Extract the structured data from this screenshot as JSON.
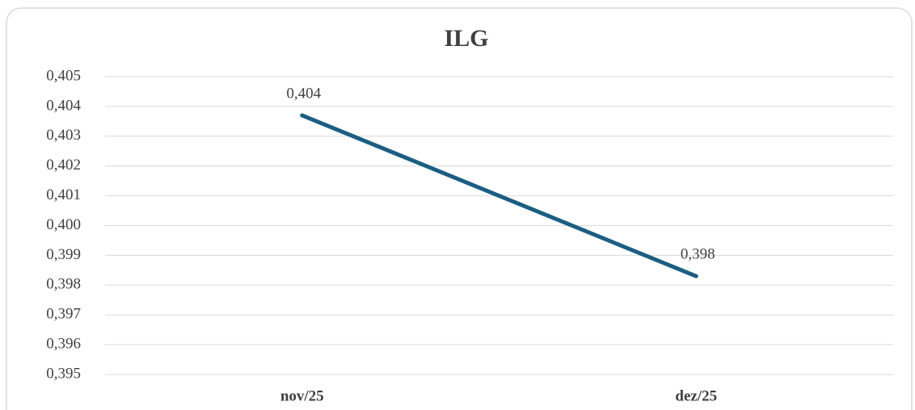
{
  "chart_data": {
    "type": "line",
    "title": "ILG",
    "categories": [
      "nov/25",
      "dez/25"
    ],
    "series": [
      {
        "name": "ILG",
        "color": "#1b5e82",
        "values": [
          0.4037,
          0.3983
        ],
        "value_labels": [
          "0,404",
          "0,398"
        ]
      }
    ],
    "ylim": [
      0.395,
      0.405
    ],
    "yticks": [
      {
        "value": 0.395,
        "label": "0,395"
      },
      {
        "value": 0.396,
        "label": "0,396"
      },
      {
        "value": 0.397,
        "label": "0,397"
      },
      {
        "value": 0.398,
        "label": "0,398"
      },
      {
        "value": 0.399,
        "label": "0,399"
      },
      {
        "value": 0.4,
        "label": "0,400"
      },
      {
        "value": 0.401,
        "label": "0,401"
      },
      {
        "value": 0.402,
        "label": "0,402"
      },
      {
        "value": 0.403,
        "label": "0,403"
      },
      {
        "value": 0.404,
        "label": "0,404"
      },
      {
        "value": 0.405,
        "label": "0,405"
      }
    ],
    "grid": true
  }
}
